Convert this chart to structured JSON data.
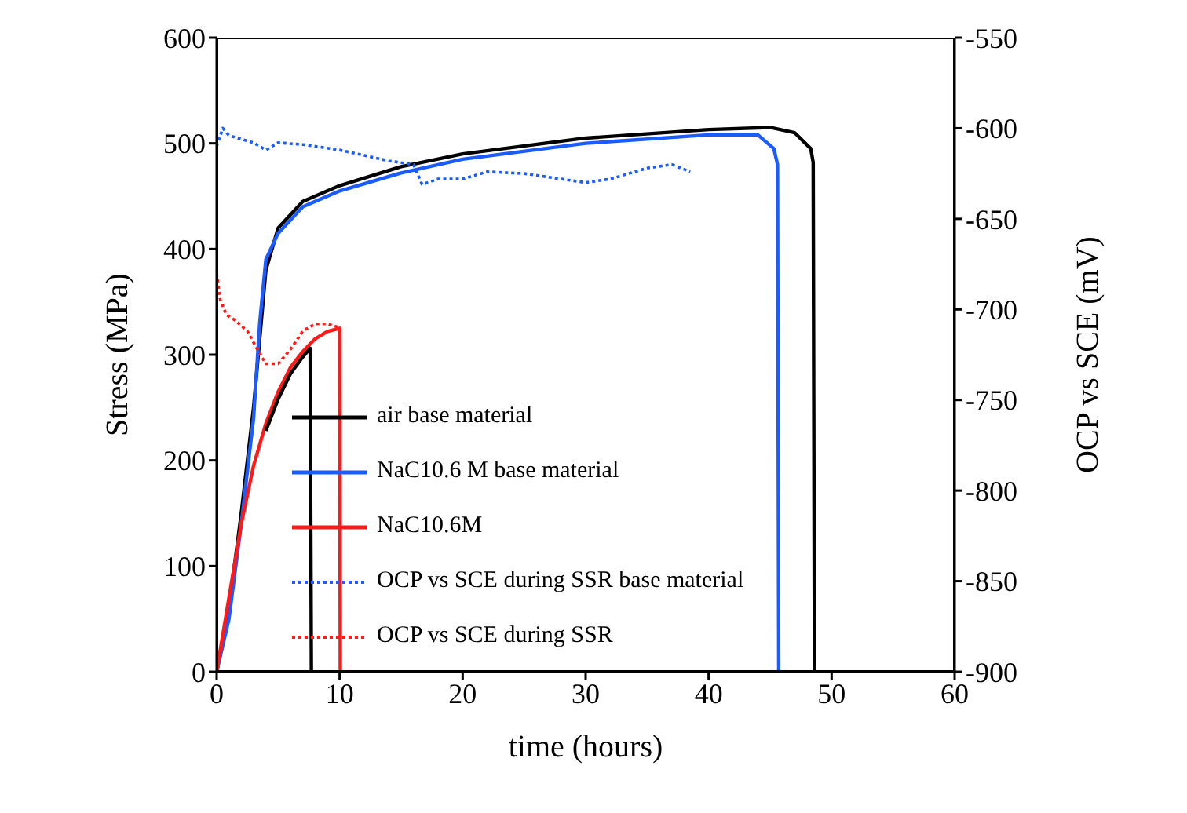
{
  "chart_data": {
    "type": "line",
    "xlabel": "time  (hours)",
    "ylabel": "Stress  (MPa)",
    "y2label": "OCP vs SCE (mV)",
    "xlim": [
      0,
      60
    ],
    "xticks": [
      0,
      10,
      20,
      30,
      40,
      50,
      60
    ],
    "ylim": [
      0,
      600
    ],
    "yticks": [
      0,
      100,
      200,
      300,
      400,
      500,
      600
    ],
    "y2lim": [
      -900,
      -550
    ],
    "y2ticks": [
      -900,
      -850,
      -800,
      -750,
      -700,
      -650,
      -600,
      -550
    ],
    "grid": false,
    "legend": "bottom",
    "marker": "none",
    "series": [
      {
        "name": "air base material",
        "color": "#000000",
        "line_style": "solid",
        "x": [
          0,
          1,
          2,
          3,
          4,
          5,
          7,
          10,
          15,
          20,
          30,
          40,
          45,
          47,
          48.3,
          48.5,
          48.6
        ],
        "values": [
          0,
          60,
          150,
          250,
          380,
          420,
          445,
          460,
          478,
          490,
          505,
          513,
          515,
          510,
          495,
          482,
          0
        ]
      },
      {
        "name": "NaC10.6 M base material",
        "color": "#1a5cff",
        "line_style": "solid",
        "x": [
          0,
          1,
          2,
          3,
          3.5,
          4,
          5,
          7,
          10,
          15,
          20,
          30,
          40,
          44,
          45.3,
          45.6,
          45.7
        ],
        "values": [
          0,
          50,
          140,
          240,
          330,
          390,
          415,
          440,
          455,
          472,
          485,
          500,
          508,
          508,
          495,
          480,
          0
        ]
      },
      {
        "name": "NaC10.6M",
        "color": "#ff1a1a",
        "line_style": "solid",
        "x": [
          0,
          1,
          2,
          3,
          4,
          5,
          6,
          7,
          8,
          9,
          10,
          10.05
        ],
        "values": [
          0,
          70,
          140,
          195,
          235,
          265,
          288,
          303,
          315,
          322,
          325,
          0
        ]
      },
      {
        "name": "OCP vs SCE during SSR base material",
        "color": "#1a5cff",
        "line_style": "dotted",
        "axis": "y2",
        "x": [
          0,
          0.5,
          1,
          2,
          3,
          4,
          5,
          7,
          10,
          12,
          14,
          16,
          16.7,
          18,
          20,
          22,
          25,
          28,
          30,
          32,
          35,
          37,
          38.5
        ],
        "values": [
          -610,
          -600,
          -604,
          -606,
          -608,
          -612,
          -608,
          -609,
          -612,
          -615,
          -618,
          -620,
          -631,
          -628,
          -628,
          -624,
          -625,
          -628,
          -630,
          -628,
          -622,
          -620,
          -624
        ]
      },
      {
        "name": "OCP vs SCE during SSR",
        "color": "#ff1a1a",
        "line_style": "dotted",
        "axis": "y2",
        "x": [
          0,
          0.3,
          0.8,
          1.5,
          2.5,
          3.3,
          4,
          5,
          6,
          7,
          8,
          9,
          10
        ],
        "values": [
          -680,
          -695,
          -703,
          -706,
          -712,
          -722,
          -730,
          -730,
          -722,
          -712,
          -708,
          -708,
          -710
        ]
      },
      {
        "color": "#000000",
        "line_style": "solid",
        "x": [
          4,
          5,
          6,
          7,
          7.6,
          7.7
        ],
        "values": [
          228,
          258,
          282,
          298,
          306,
          0
        ]
      }
    ]
  }
}
